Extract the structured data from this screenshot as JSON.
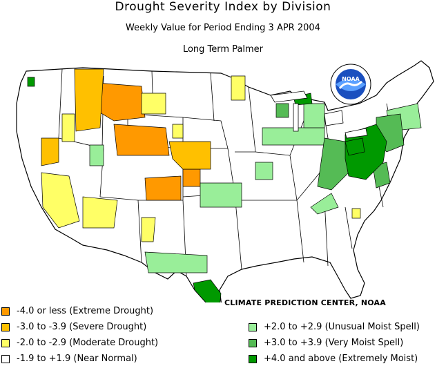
{
  "title": "Drought Severity Index by Division",
  "subtitle": "Weekly Value for Period Ending  3 APR 2004",
  "index_name": "Long Term Palmer",
  "logo_text": "NOAA",
  "credit": "CLIMATE PREDICTION CENTER, NOAA",
  "legend": [
    {
      "label": "-4.0 or less (Extreme Drought)",
      "color": "#ff9900"
    },
    {
      "label": "-3.0 to -3.9 (Severe Drought)",
      "color": "#ffc000"
    },
    {
      "label": "-2.0 to -2.9 (Moderate Drought)",
      "color": "#ffff66"
    },
    {
      "label": "-1.9 to +1.9 (Near Normal)",
      "color": "#ffffff"
    },
    {
      "label": "+2.0 to +2.9 (Unusual Moist Spell)",
      "color": "#99ee99"
    },
    {
      "label": "+3.0 to +3.9 (Very Moist Spell)",
      "color": "#55bb55"
    },
    {
      "label": "+4.0 and above (Extremely Moist)",
      "color": "#009900"
    }
  ]
}
